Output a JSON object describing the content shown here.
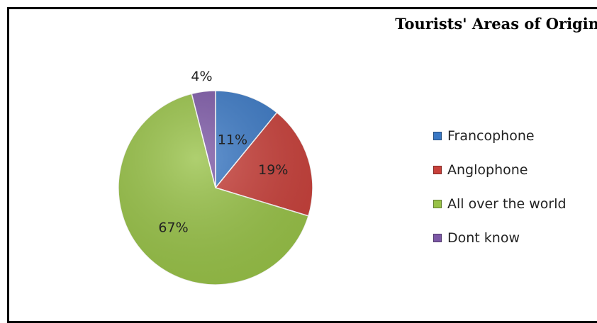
{
  "chart_data": {
    "type": "pie",
    "title": "Tourists' Areas of Origin",
    "categories": [
      "Francophone",
      "Anglophone",
      "All over the world",
      "Dont know"
    ],
    "values": [
      11,
      19,
      67,
      4
    ],
    "labels": [
      "11%",
      "19%",
      "67%",
      "4%"
    ],
    "colors": [
      "#3a78c4",
      "#c8403a",
      "#98c247",
      "#7c58a6"
    ],
    "legend_position": "right"
  }
}
